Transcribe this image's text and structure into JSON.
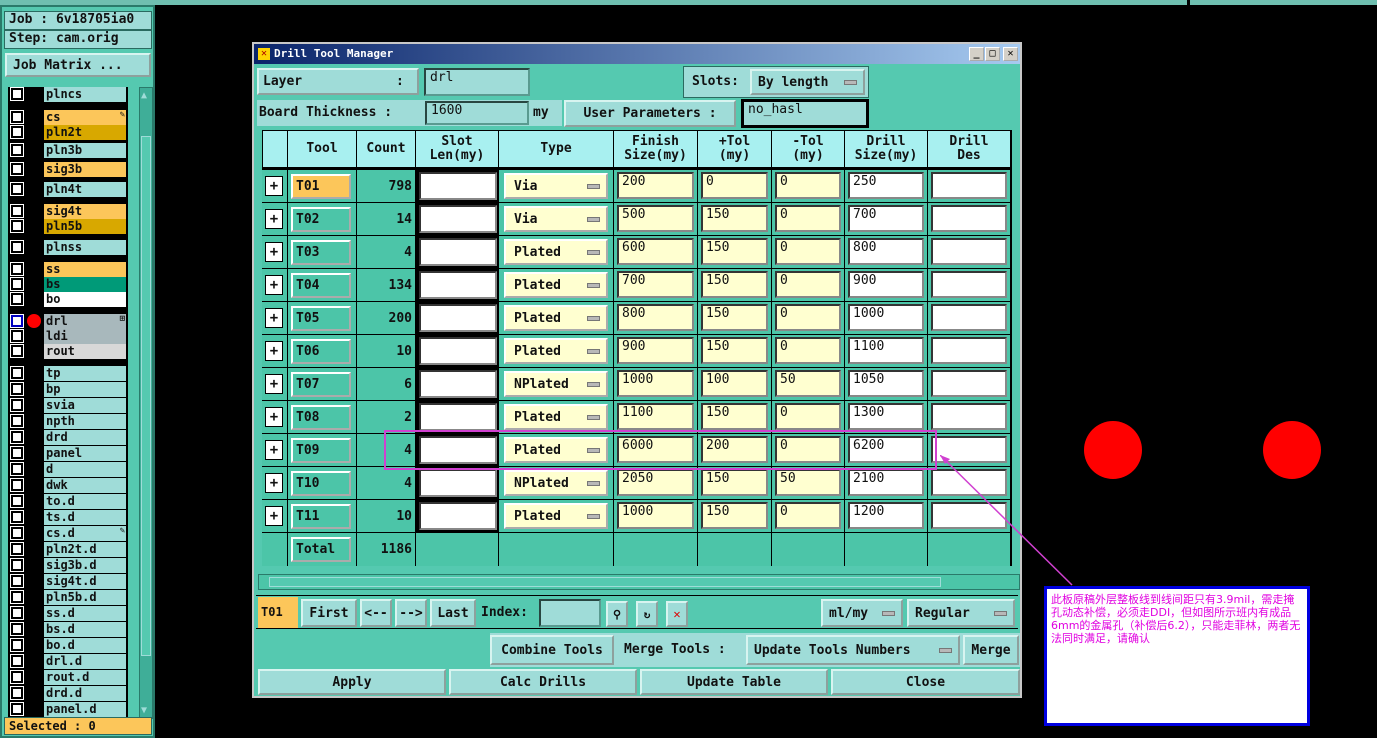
{
  "job": "Job : 6v18705ia0",
  "step": "Step: cam.orig",
  "job_matrix": "Job Matrix ...",
  "selected": "Selected : 0",
  "layers": [
    {
      "name": "plncs",
      "color": "#9fdcd8"
    },
    {
      "name": "cs",
      "color": "#fcc65a",
      "mark": "✎"
    },
    {
      "name": "pln2t",
      "color": "#d8a800"
    },
    {
      "name": "pln3b",
      "color": "#9fdcd8"
    },
    {
      "name": "sig3b",
      "color": "#fcc65a"
    },
    {
      "name": "pln4t",
      "color": "#9fdcd8"
    },
    {
      "name": "sig4t",
      "color": "#fcc65a"
    },
    {
      "name": "pln5b",
      "color": "#d8a800"
    },
    {
      "name": "plnss",
      "color": "#9fdcd8"
    },
    {
      "name": "ss",
      "color": "#fcc65a"
    },
    {
      "name": "bs",
      "color": "#009a78"
    },
    {
      "name": "bo",
      "color": "#ffffff"
    },
    {
      "name": "drl",
      "color": "#a8b8bc",
      "active": true,
      "mark": "⊞"
    },
    {
      "name": "ldi",
      "color": "#a8b8bc"
    },
    {
      "name": "rout",
      "color": "#d8d8d8"
    },
    {
      "name": "tp"
    },
    {
      "name": "bp"
    },
    {
      "name": "svia"
    },
    {
      "name": "npth"
    },
    {
      "name": "drd"
    },
    {
      "name": "panel"
    },
    {
      "name": "d"
    },
    {
      "name": "dwk"
    },
    {
      "name": "to.d"
    },
    {
      "name": "ts.d"
    },
    {
      "name": "cs.d",
      "mark": "✎"
    },
    {
      "name": "pln2t.d"
    },
    {
      "name": "sig3b.d"
    },
    {
      "name": "sig4t.d"
    },
    {
      "name": "pln5b.d"
    },
    {
      "name": "ss.d"
    },
    {
      "name": "bs.d"
    },
    {
      "name": "bo.d"
    },
    {
      "name": "drl.d"
    },
    {
      "name": "rout.d"
    },
    {
      "name": "drd.d"
    },
    {
      "name": "panel.d"
    }
  ],
  "dialog": {
    "title": "Drill Tool Manager",
    "layer_label": "Layer            :",
    "layer_value": "drl",
    "slots_label": "Slots:",
    "slots_value": "By length",
    "thickness_label": "Board Thickness :",
    "thickness_value": "1600",
    "thickness_unit": "my",
    "user_params_label": "User Parameters :",
    "user_params_value": "no_hasl",
    "headers": [
      "Tool",
      "Count",
      "Slot\nLen(my)",
      "Type",
      "Finish\nSize(my)",
      "+Tol\n(my)",
      "-Tol\n(my)",
      "Drill\nSize(my)",
      "Drill\nDes"
    ],
    "rows": [
      [
        "T01",
        "798",
        "Via",
        "200",
        "0",
        "0",
        "250"
      ],
      [
        "T02",
        "14",
        "Via",
        "500",
        "150",
        "0",
        "700"
      ],
      [
        "T03",
        "4",
        "Plated",
        "600",
        "150",
        "0",
        "800"
      ],
      [
        "T04",
        "134",
        "Plated",
        "700",
        "150",
        "0",
        "900"
      ],
      [
        "T05",
        "200",
        "Plated",
        "800",
        "150",
        "0",
        "1000"
      ],
      [
        "T06",
        "10",
        "Plated",
        "900",
        "150",
        "0",
        "1100"
      ],
      [
        "T07",
        "6",
        "NPlated",
        "1000",
        "100",
        "50",
        "1050"
      ],
      [
        "T08",
        "2",
        "Plated",
        "1100",
        "150",
        "0",
        "1300"
      ],
      [
        "T09",
        "4",
        "Plated",
        "6000",
        "200",
        "0",
        "6200"
      ],
      [
        "T10",
        "4",
        "NPlated",
        "2050",
        "150",
        "50",
        "2100"
      ],
      [
        "T11",
        "10",
        "Plated",
        "1000",
        "150",
        "0",
        "1200"
      ]
    ],
    "total_label": "Total",
    "total_count": "1186",
    "current_tool": "T01",
    "first": "First",
    "prev": "<--",
    "next": "-->",
    "last": "Last",
    "index_label": "Index:",
    "units": "ml/my",
    "mode": "Regular",
    "combine": "Combine Tools",
    "merge_label": "Merge Tools :",
    "merge_option": "Update Tools Numbers",
    "merge": "Merge",
    "apply": "Apply",
    "calc": "Calc Drills",
    "update": "Update Table",
    "close": "Close"
  },
  "annotation": "此板原稿外层整板线到线间距只有3.9mil，需走掩孔动态补偿，必须走DDI，但如图所示班内有成品6mm的金属孔（补偿后6.2），只能走菲林，两者无法同时满足，请确认",
  "colors": {
    "highlight": "#d040d0",
    "annotation_border": "#0000e0",
    "annotation_text": "#e000e0"
  }
}
